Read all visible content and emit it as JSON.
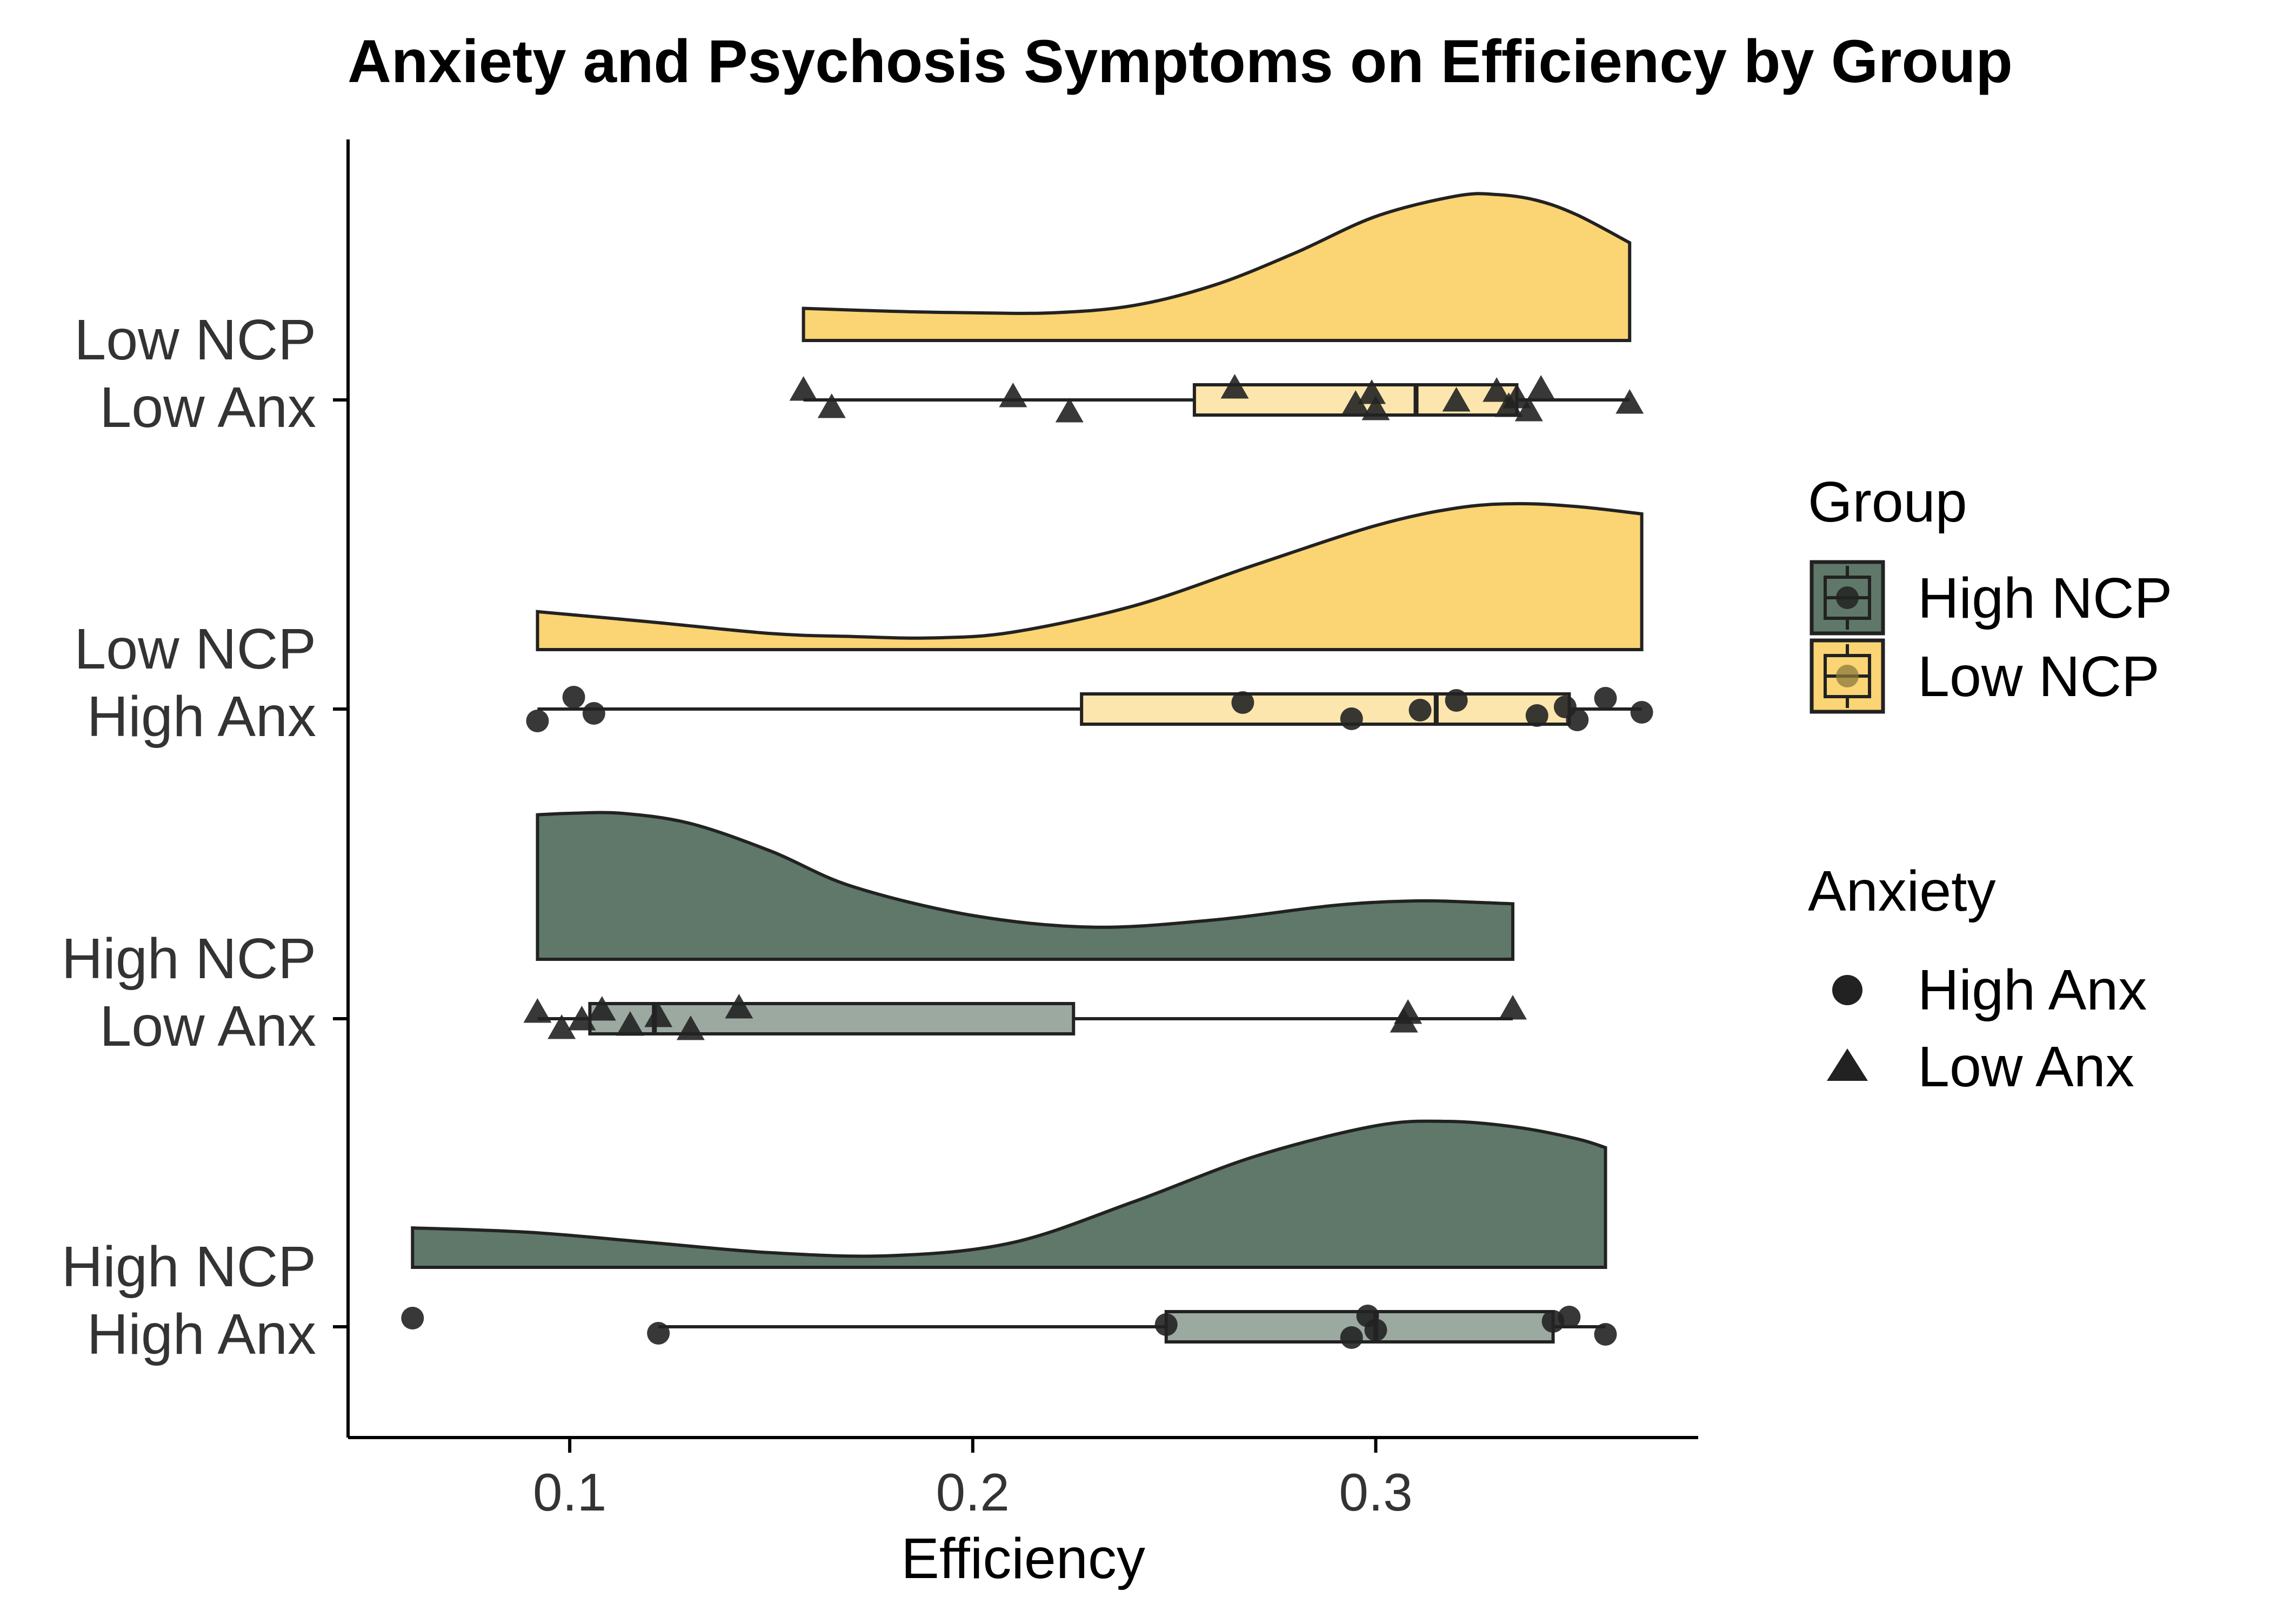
{
  "chart_data": {
    "type": "raincloud",
    "title": "Anxiety and Psychosis Symptoms on Efficiency by Group",
    "xlabel": "Efficiency",
    "ylabel": "",
    "xlim": [
      0.045,
      0.38
    ],
    "x_ticks": [
      {
        "value": 0.1,
        "label": "0.1"
      },
      {
        "value": 0.2,
        "label": "0.2"
      },
      {
        "value": 0.3,
        "label": "0.3"
      }
    ],
    "grid": false,
    "colors": {
      "High NCP": "#5F7869",
      "Low NCP": "#FBD474",
      "High NCP box": "#9BA9A1",
      "Low NCP box": "#FDE6AD",
      "points": "#222222",
      "outline": "#222222"
    },
    "categories": [
      {
        "label_line1": "Low NCP",
        "label_line2": "Low Anx",
        "group": "Low NCP",
        "anxiety": "Low Anx",
        "box": {
          "min": 0.158,
          "q1": 0.255,
          "median": 0.31,
          "q3": 0.335,
          "max": 0.363
        },
        "density_x": [
          0.158,
          0.18,
          0.2,
          0.22,
          0.24,
          0.26,
          0.28,
          0.3,
          0.32,
          0.33,
          0.34,
          0.35,
          0.363
        ],
        "density_h": [
          0.22,
          0.2,
          0.19,
          0.19,
          0.24,
          0.38,
          0.6,
          0.85,
          0.99,
          1.0,
          0.96,
          0.86,
          0.67
        ],
        "points": [
          0.158,
          0.165,
          0.21,
          0.224,
          0.265,
          0.295,
          0.299,
          0.3,
          0.32,
          0.33,
          0.333,
          0.335,
          0.338,
          0.341,
          0.363
        ]
      },
      {
        "label_line1": "Low NCP",
        "label_line2": "High Anx",
        "group": "Low NCP",
        "anxiety": "High Anx",
        "box": {
          "min": 0.092,
          "q1": 0.227,
          "median": 0.315,
          "q3": 0.348,
          "max": 0.366
        },
        "density_x": [
          0.092,
          0.12,
          0.15,
          0.17,
          0.19,
          0.21,
          0.24,
          0.27,
          0.3,
          0.32,
          0.335,
          0.35,
          0.366
        ],
        "density_h": [
          0.26,
          0.19,
          0.11,
          0.09,
          0.08,
          0.12,
          0.3,
          0.58,
          0.85,
          0.97,
          1.0,
          0.98,
          0.93
        ],
        "points": [
          0.092,
          0.101,
          0.106,
          0.267,
          0.294,
          0.311,
          0.32,
          0.34,
          0.347,
          0.35,
          0.357,
          0.366
        ]
      },
      {
        "label_line1": "High NCP",
        "label_line2": "Low Anx",
        "group": "High NCP",
        "anxiety": "Low Anx",
        "box": {
          "min": 0.092,
          "q1": 0.105,
          "median": 0.121,
          "q3": 0.225,
          "max": 0.334
        },
        "density_x": [
          0.092,
          0.1,
          0.113,
          0.13,
          0.15,
          0.17,
          0.2,
          0.23,
          0.26,
          0.29,
          0.31,
          0.325,
          0.334
        ],
        "density_h": [
          0.99,
          1.0,
          1.0,
          0.93,
          0.74,
          0.5,
          0.3,
          0.22,
          0.27,
          0.37,
          0.4,
          0.39,
          0.38
        ],
        "points": [
          0.092,
          0.098,
          0.103,
          0.108,
          0.115,
          0.122,
          0.13,
          0.142,
          0.307,
          0.308,
          0.334
        ]
      },
      {
        "label_line1": "High NCP",
        "label_line2": "High Anx",
        "group": "High NCP",
        "anxiety": "High Anx",
        "box": {
          "min": 0.122,
          "q1": 0.248,
          "median": 0.3,
          "q3": 0.344,
          "max": 0.357
        },
        "density_x": [
          0.061,
          0.09,
          0.12,
          0.15,
          0.18,
          0.21,
          0.24,
          0.27,
          0.3,
          0.318,
          0.335,
          0.35,
          0.357
        ],
        "density_h": [
          0.27,
          0.24,
          0.17,
          0.1,
          0.08,
          0.17,
          0.45,
          0.76,
          0.97,
          1.0,
          0.96,
          0.88,
          0.82
        ],
        "points": [
          0.061,
          0.122,
          0.248,
          0.294,
          0.298,
          0.3,
          0.344,
          0.348,
          0.357
        ]
      }
    ],
    "legend": {
      "placement": "right",
      "group_title": "Group",
      "group_items": [
        {
          "label": "High NCP",
          "color": "#5F7869",
          "icon": "box-with-circle-icon"
        },
        {
          "label": "Low NCP",
          "color": "#FBD474",
          "icon": "box-with-circle-icon"
        }
      ],
      "anxiety_title": "Anxiety",
      "anxiety_items": [
        {
          "label": "High Anx",
          "shape": "circle"
        },
        {
          "label": "Low Anx",
          "shape": "triangle"
        }
      ]
    }
  }
}
